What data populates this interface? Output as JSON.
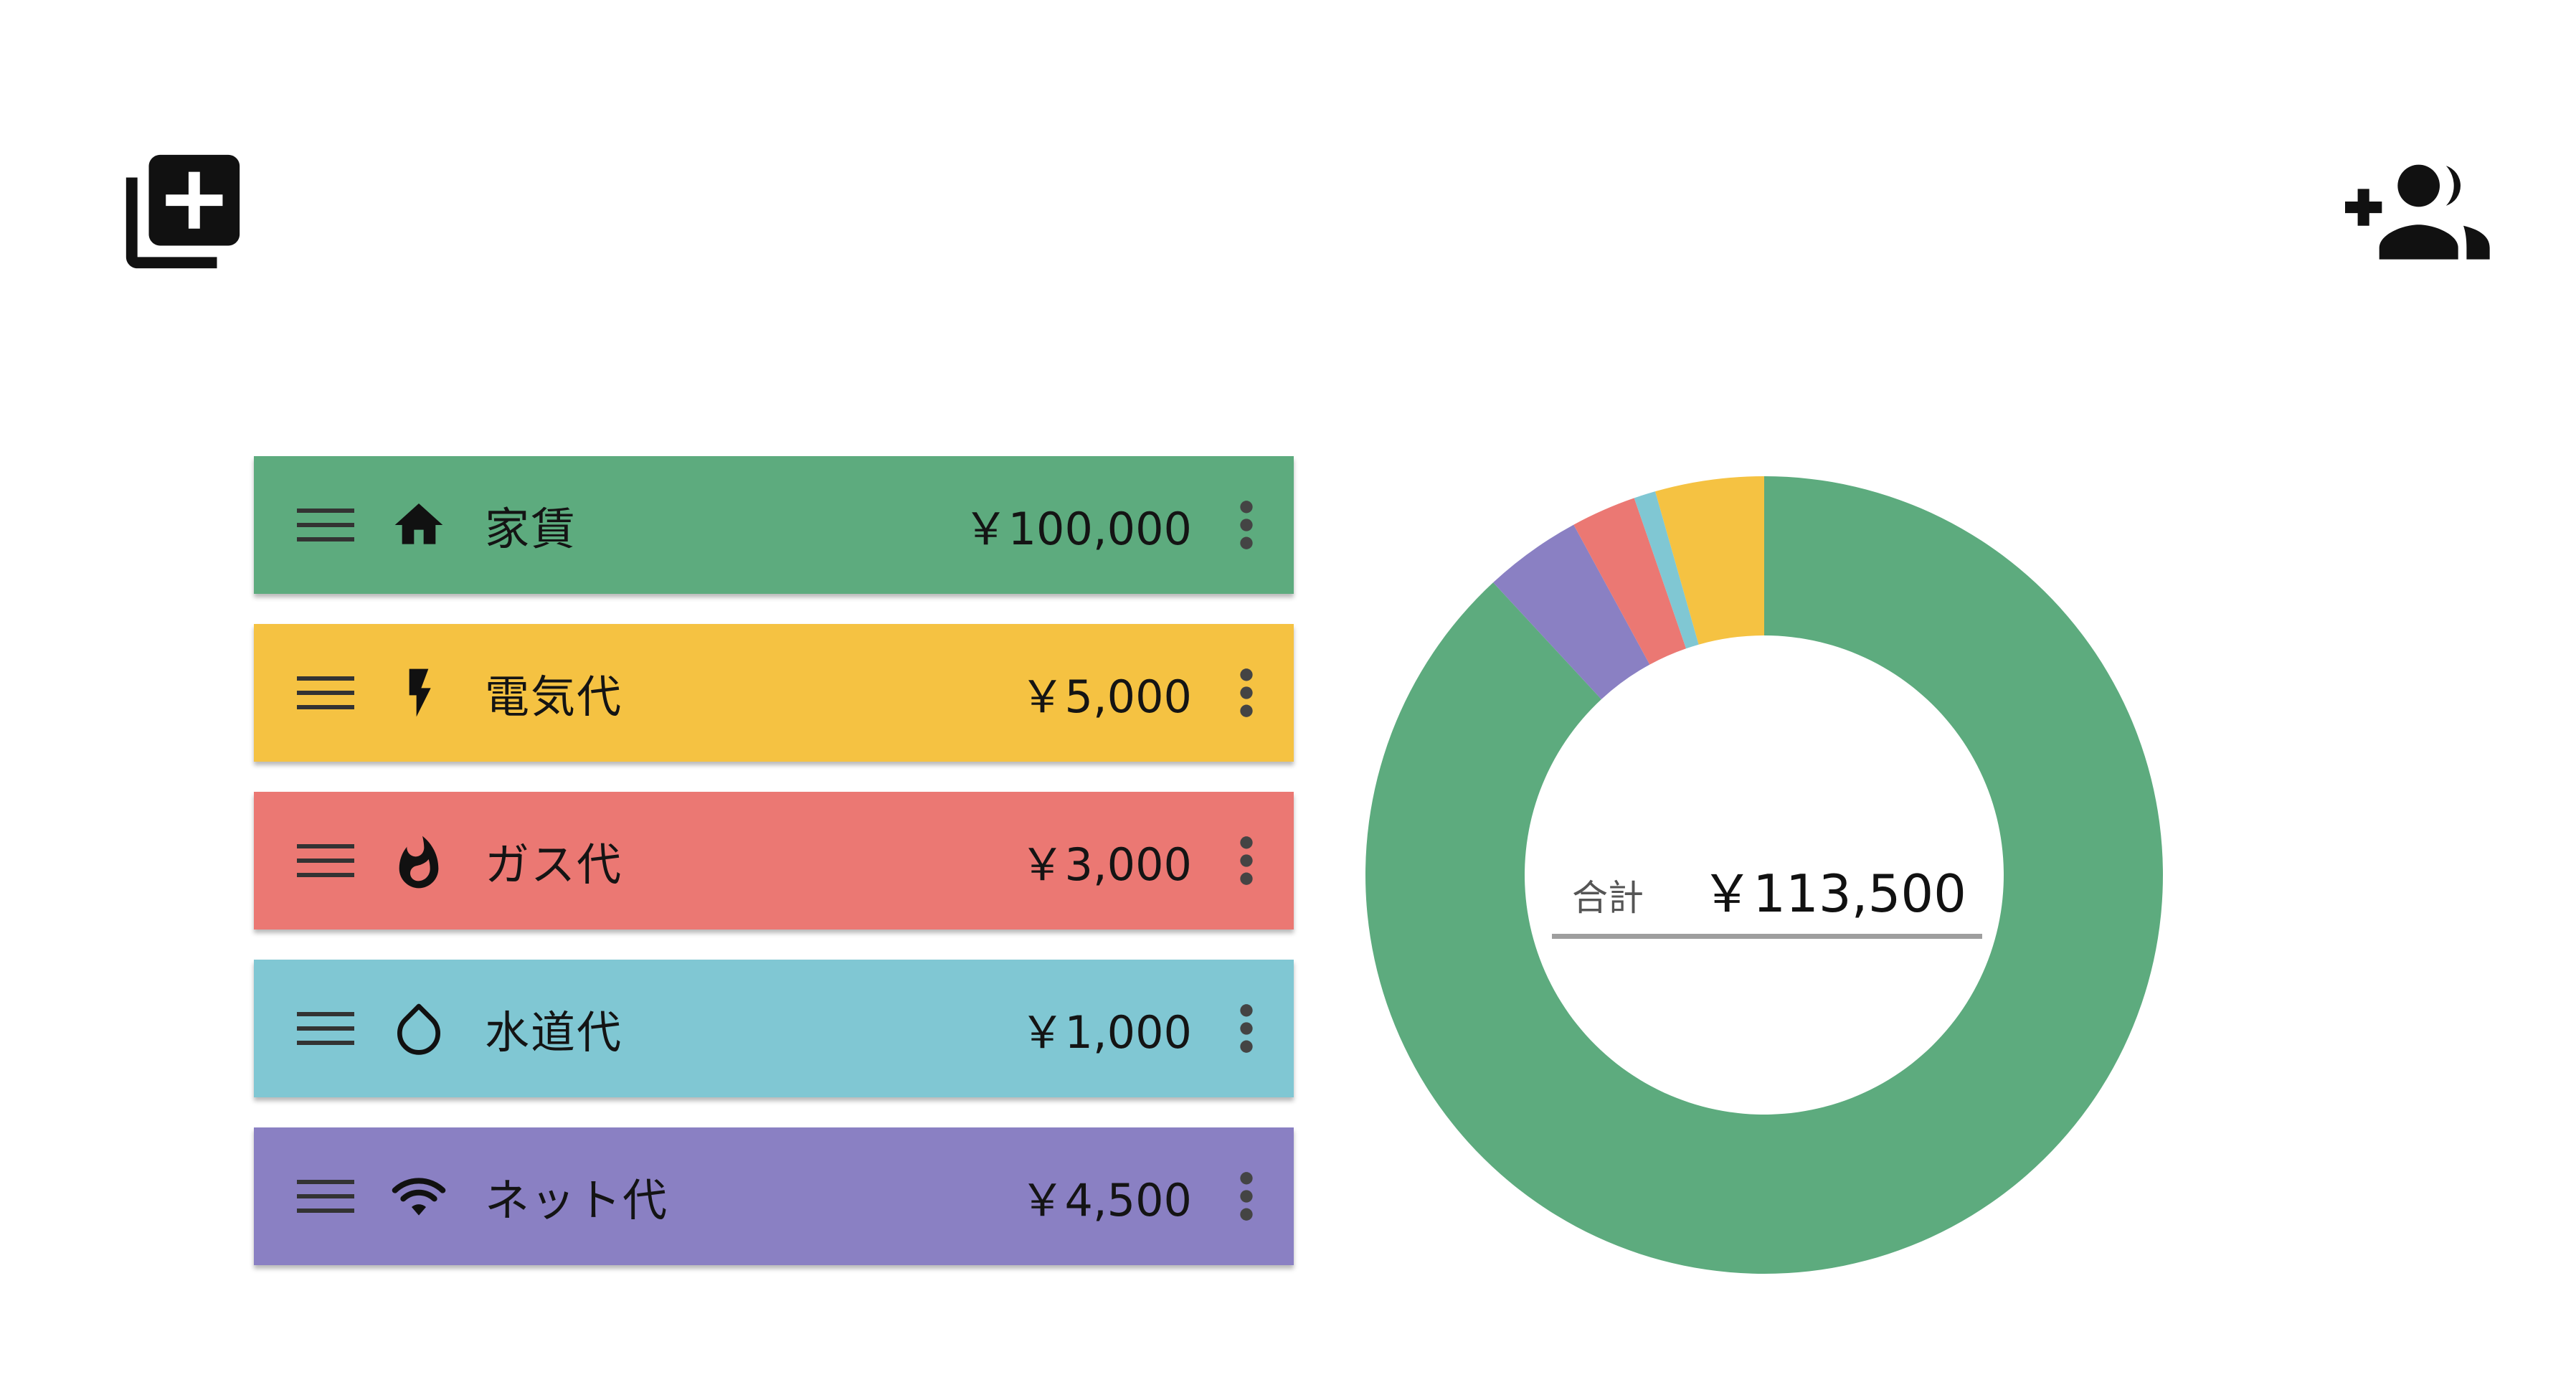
{
  "toolbar": {
    "add_list_icon": "library-add-icon",
    "add_member_icon": "group-add-icon"
  },
  "expenses": [
    {
      "name": "家賃",
      "amount": "￥100,000",
      "value": 100000,
      "icon": "home-icon",
      "color": "#5dab7e"
    },
    {
      "name": "電気代",
      "amount": "￥5,000",
      "value": 5000,
      "icon": "lightning-icon",
      "color": "#f5c242"
    },
    {
      "name": "ガス代",
      "amount": "￥3,000",
      "value": 3000,
      "icon": "flame-icon",
      "color": "#eb7873"
    },
    {
      "name": "水道代",
      "amount": "￥1,000",
      "value": 1000,
      "icon": "water-drop-icon",
      "color": "#80c7d3"
    },
    {
      "name": "ネット代",
      "amount": "￥4,500",
      "value": 4500,
      "icon": "wifi-icon",
      "color": "#8a80c3"
    }
  ],
  "summary": {
    "label": "合計",
    "amount": "￥113,500"
  },
  "chart_data": {
    "type": "pie",
    "categories": [
      "家賃",
      "ネット代",
      "ガス代",
      "水道代",
      "電気代"
    ],
    "values": [
      100000,
      4500,
      3000,
      1000,
      5000
    ],
    "colors": [
      "#5dab7e",
      "#8a80c3",
      "#eb7873",
      "#80c7d3",
      "#f5c242"
    ],
    "order": "clockwise-from-top",
    "hole": true
  }
}
